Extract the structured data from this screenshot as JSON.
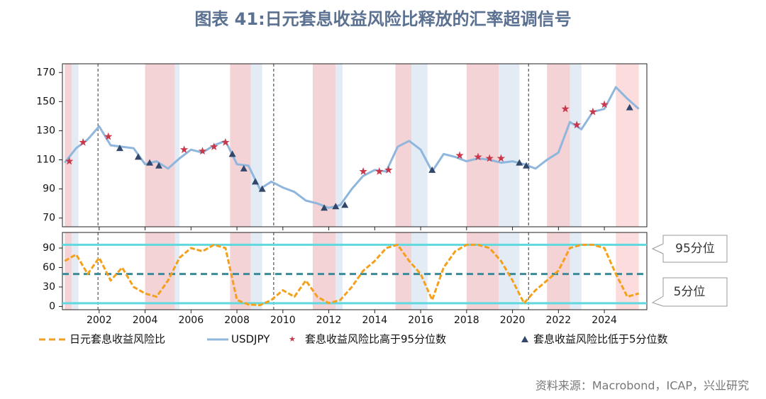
{
  "title": "图表 41:日元套息收益风险比释放的汇率超调信号",
  "source": "资料来源：Macrobond，ICAP，兴业研究",
  "chart_data": [
    {
      "type": "line",
      "xlim": [
        2000.4,
        2025.85
      ],
      "xticks": [
        2002,
        2004,
        2006,
        2008,
        2010,
        2012,
        2014,
        2016,
        2018,
        2020,
        2022,
        2024
      ],
      "ylim": [
        64,
        176
      ],
      "yticks": [
        70,
        90,
        110,
        130,
        150,
        170
      ],
      "x": [
        2000.5,
        2001,
        2001.5,
        2002,
        2002.5,
        2003,
        2003.5,
        2004,
        2004.5,
        2005,
        2005.5,
        2006,
        2006.5,
        2007,
        2007.5,
        2008,
        2008.5,
        2009,
        2009.5,
        2010,
        2010.5,
        2011,
        2011.5,
        2012,
        2012.5,
        2013,
        2013.5,
        2014,
        2014.5,
        2015,
        2015.5,
        2016,
        2016.5,
        2017,
        2017.5,
        2018,
        2018.5,
        2019,
        2019.5,
        2020,
        2020.5,
        2021,
        2021.5,
        2022,
        2022.5,
        2023,
        2023.5,
        2024,
        2024.5,
        2025,
        2025.5
      ],
      "series": [
        {
          "name": "USDJPY",
          "color": "#8fb6dc",
          "type": "line",
          "values": [
            108,
            118,
            124,
            133,
            120,
            119,
            118,
            107,
            109,
            104,
            111,
            117,
            115,
            120,
            123,
            107,
            106,
            90,
            95,
            91,
            88,
            82,
            80,
            77,
            79,
            90,
            99,
            103,
            102,
            119,
            123,
            117,
            102,
            114,
            112,
            109,
            111,
            110,
            108,
            109,
            107,
            104,
            110,
            115,
            136,
            131,
            143,
            145,
            160,
            152,
            145
          ]
        },
        {
          "name": "套息收益风险比高于95分位数",
          "color": "#c8374a",
          "type": "star",
          "x": [
            2000.7,
            2001.3,
            2002.4,
            2005.7,
            2006.5,
            2007.0,
            2007.5,
            2013.5,
            2014.2,
            2014.6,
            2017.7,
            2018.5,
            2019.0,
            2019.5,
            2022.3,
            2022.8,
            2023.5,
            2024.0
          ],
          "values": [
            109,
            122,
            126,
            117,
            116,
            119,
            122,
            102,
            102,
            103,
            113,
            112,
            111,
            111,
            145,
            134,
            143,
            148
          ]
        },
        {
          "name": "套息收益风险比低于5分位数",
          "color": "#33476b",
          "type": "triangle",
          "x": [
            2002.9,
            2003.7,
            2004.2,
            2004.6,
            2007.8,
            2008.3,
            2008.8,
            2009.1,
            2011.8,
            2012.3,
            2012.7,
            2016.5,
            2020.3,
            2020.6,
            2025.1
          ],
          "values": [
            118,
            112,
            108,
            106,
            114,
            104,
            95,
            90,
            77,
            78,
            79,
            103,
            108,
            106,
            146
          ]
        }
      ]
    },
    {
      "type": "line",
      "xlim": [
        2000.4,
        2025.85
      ],
      "xticks": [
        2002,
        2004,
        2006,
        2008,
        2010,
        2012,
        2014,
        2016,
        2018,
        2020,
        2022,
        2024
      ],
      "ylim": [
        -5,
        114
      ],
      "yticks": [
        0,
        30,
        60,
        90
      ],
      "x": [
        2000.5,
        2001,
        2001.5,
        2002,
        2002.5,
        2003,
        2003.5,
        2004,
        2004.5,
        2005,
        2005.5,
        2006,
        2006.5,
        2007,
        2007.5,
        2008,
        2008.5,
        2009,
        2009.5,
        2010,
        2010.5,
        2011,
        2011.5,
        2012,
        2012.5,
        2013,
        2013.5,
        2014,
        2014.5,
        2015,
        2015.5,
        2016,
        2016.5,
        2017,
        2017.5,
        2018,
        2018.5,
        2019,
        2019.5,
        2020,
        2020.5,
        2021,
        2021.5,
        2022,
        2022.5,
        2023,
        2023.5,
        2024,
        2024.5,
        2025,
        2025.5
      ],
      "series": [
        {
          "name": "日元套息收益风险比",
          "color": "#f5a01a",
          "type": "line",
          "values": [
            70,
            80,
            50,
            75,
            40,
            60,
            30,
            20,
            15,
            40,
            75,
            90,
            85,
            95,
            90,
            10,
            3,
            2,
            10,
            25,
            15,
            40,
            15,
            5,
            10,
            30,
            55,
            70,
            90,
            95,
            70,
            50,
            10,
            60,
            85,
            95,
            95,
            90,
            70,
            40,
            5,
            25,
            40,
            55,
            90,
            95,
            95,
            90,
            50,
            15,
            20
          ]
        }
      ],
      "hlines": [
        {
          "value": 95,
          "color": "#5fd8e0",
          "style": "solid",
          "label": "95分位"
        },
        {
          "value": 50,
          "color": "#3a8a99",
          "style": "dashed"
        },
        {
          "value": 5,
          "color": "#5fd8e0",
          "style": "solid",
          "label": "5分位"
        }
      ]
    }
  ],
  "shaded_periods": [
    {
      "start": 2000.5,
      "end": 2000.8,
      "color": "#f4d3d6"
    },
    {
      "start": 2000.8,
      "end": 2001.1,
      "color": "#e3ebf5"
    },
    {
      "start": 2004.0,
      "end": 2005.3,
      "color": "#f4d3d6"
    },
    {
      "start": 2005.3,
      "end": 2005.5,
      "color": "#e3ebf5"
    },
    {
      "start": 2007.7,
      "end": 2008.6,
      "color": "#f4d3d6"
    },
    {
      "start": 2008.6,
      "end": 2009.1,
      "color": "#e3ebf5"
    },
    {
      "start": 2011.3,
      "end": 2012.3,
      "color": "#f4d3d6"
    },
    {
      "start": 2012.3,
      "end": 2012.6,
      "color": "#e3ebf5"
    },
    {
      "start": 2014.9,
      "end": 2015.6,
      "color": "#f4d3d6"
    },
    {
      "start": 2015.6,
      "end": 2016.3,
      "color": "#e3ebf5"
    },
    {
      "start": 2018.0,
      "end": 2019.4,
      "color": "#f4d3d6"
    },
    {
      "start": 2019.4,
      "end": 2020.3,
      "color": "#e3ebf5"
    },
    {
      "start": 2021.5,
      "end": 2022.5,
      "color": "#f4d3d6"
    },
    {
      "start": 2022.5,
      "end": 2023.0,
      "color": "#e3ebf5"
    },
    {
      "start": 2024.5,
      "end": 2025.5,
      "color": "#fcdcdc"
    }
  ],
  "vlines": [
    2001.95,
    2009.6,
    2020.7
  ]
}
